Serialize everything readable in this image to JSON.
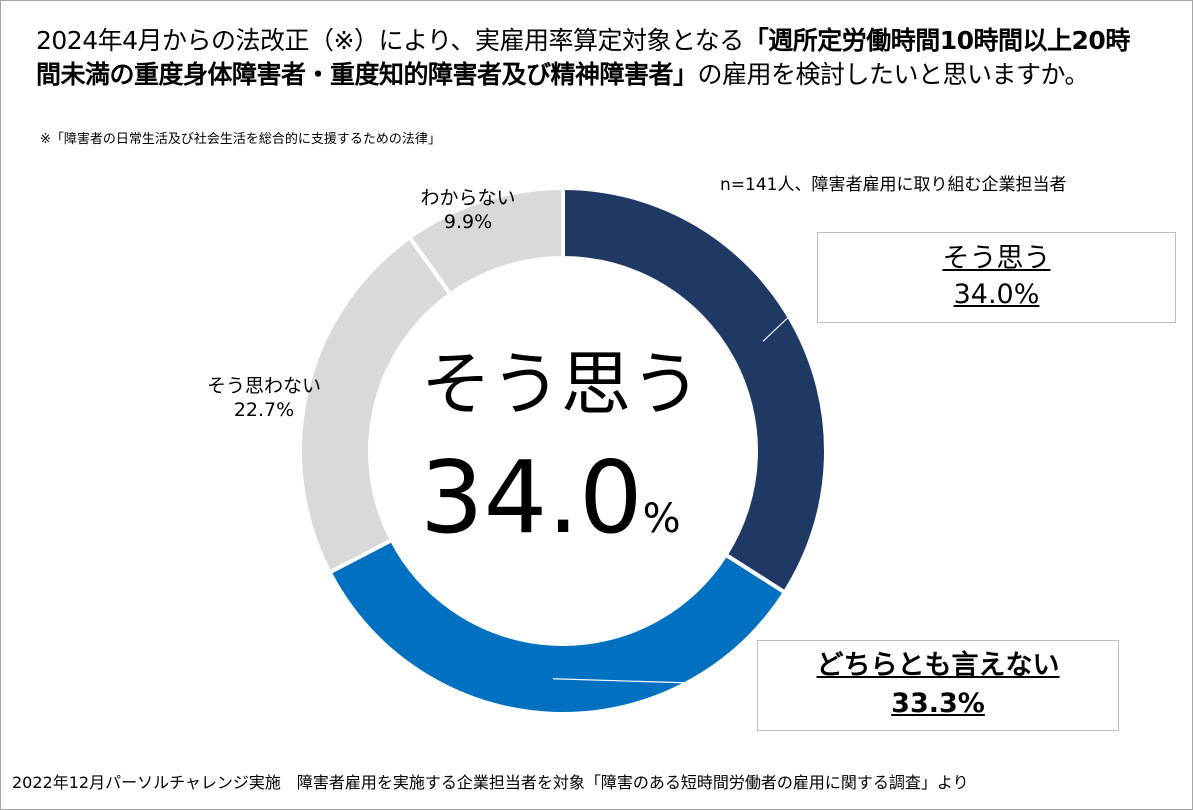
{
  "title_prefix": "2024年4月からの法改正（※）により、実雇用率算定対象となる",
  "title_bold": "「週所定労働時間10時間以上20時間未満の重度身体障害者・重度知的障害者及び精神障害者」",
  "title_suffix": "の雇用を検討したいと思いますか。",
  "note": "※「障害者の日常生活及び社会生活を総合的に支援するための法律」",
  "sample": "n=141人、障害者雇用に取り組む企業担当者",
  "center": {
    "label": "そう思う",
    "value": "34.0",
    "unit": "%"
  },
  "labels": {
    "wakaranai_name": "わからない",
    "wakaranai_val": "9.9%",
    "souomowanai_name": "そう思わない",
    "souomowanai_val": "22.7%",
    "souomou_name": "そう思う",
    "souomou_val": "34.0%",
    "dochira_name": "どちらとも言えない",
    "dochira_val": "33.3%"
  },
  "source": "2022年12月パーソルチャレンジ実施　障害者雇用を実施する企業担当者を対象「障害のある短時間労働者の雇用に関する調査」より",
  "chart_data": {
    "type": "pie",
    "style": "donut",
    "categories": [
      "そう思う",
      "どちらとも言えない",
      "そう思わない",
      "わからない"
    ],
    "values": [
      34.0,
      33.3,
      22.7,
      9.9
    ],
    "colors": [
      "#1f3864",
      "#0070c0",
      "#d9d9d9",
      "#d9d9d9"
    ]
  }
}
